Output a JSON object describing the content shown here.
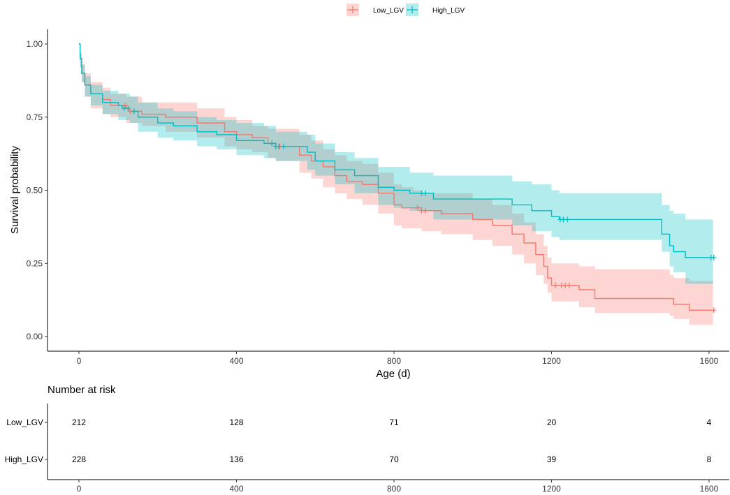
{
  "chart_data": {
    "type": "line",
    "title": "",
    "xlabel": "Age (d)",
    "ylabel": "Survival probability",
    "xlim": [
      -90,
      1640
    ],
    "ylim": [
      -0.05,
      1.05
    ],
    "x_ticks": [
      0,
      400,
      800,
      1200,
      1600
    ],
    "y_ticks": [
      0.0,
      0.25,
      0.5,
      0.75,
      1.0
    ],
    "y_tick_labels": [
      "0.00",
      "0.25",
      "0.50",
      "0.75",
      "1.00"
    ],
    "legend_position": "top",
    "grid": false,
    "series": [
      {
        "name": "Low_LGV",
        "color": "#F8766D",
        "fill_color": "#F8766D",
        "points": [
          [
            0,
            1.0
          ],
          [
            3,
            0.95
          ],
          [
            7,
            0.9
          ],
          [
            15,
            0.86
          ],
          [
            30,
            0.83
          ],
          [
            60,
            0.81
          ],
          [
            80,
            0.79
          ],
          [
            120,
            0.78
          ],
          [
            130,
            0.77
          ],
          [
            160,
            0.76
          ],
          [
            220,
            0.75
          ],
          [
            300,
            0.73
          ],
          [
            370,
            0.7
          ],
          [
            400,
            0.69
          ],
          [
            440,
            0.68
          ],
          [
            480,
            0.66
          ],
          [
            500,
            0.65
          ],
          [
            560,
            0.62
          ],
          [
            590,
            0.6
          ],
          [
            620,
            0.58
          ],
          [
            650,
            0.55
          ],
          [
            680,
            0.53
          ],
          [
            720,
            0.52
          ],
          [
            760,
            0.49
          ],
          [
            800,
            0.45
          ],
          [
            820,
            0.44
          ],
          [
            850,
            0.44
          ],
          [
            870,
            0.43
          ],
          [
            920,
            0.42
          ],
          [
            1000,
            0.4
          ],
          [
            1050,
            0.38
          ],
          [
            1100,
            0.35
          ],
          [
            1130,
            0.32
          ],
          [
            1160,
            0.28
          ],
          [
            1180,
            0.24
          ],
          [
            1190,
            0.2
          ],
          [
            1200,
            0.175
          ],
          [
            1250,
            0.175
          ],
          [
            1270,
            0.16
          ],
          [
            1310,
            0.13
          ],
          [
            1500,
            0.13
          ],
          [
            1510,
            0.11
          ],
          [
            1550,
            0.09
          ],
          [
            1610,
            0.09
          ]
        ],
        "upper": [
          [
            0,
            1.0
          ],
          [
            3,
            0.97
          ],
          [
            7,
            0.93
          ],
          [
            15,
            0.9
          ],
          [
            30,
            0.87
          ],
          [
            60,
            0.85
          ],
          [
            80,
            0.83
          ],
          [
            120,
            0.82
          ],
          [
            160,
            0.8
          ],
          [
            220,
            0.8
          ],
          [
            300,
            0.78
          ],
          [
            370,
            0.75
          ],
          [
            400,
            0.74
          ],
          [
            440,
            0.72
          ],
          [
            480,
            0.71
          ],
          [
            500,
            0.71
          ],
          [
            560,
            0.69
          ],
          [
            590,
            0.67
          ],
          [
            620,
            0.64
          ],
          [
            650,
            0.62
          ],
          [
            680,
            0.6
          ],
          [
            720,
            0.59
          ],
          [
            760,
            0.56
          ],
          [
            800,
            0.52
          ],
          [
            820,
            0.51
          ],
          [
            850,
            0.5
          ],
          [
            870,
            0.49
          ],
          [
            920,
            0.49
          ],
          [
            1000,
            0.47
          ],
          [
            1050,
            0.45
          ],
          [
            1100,
            0.42
          ],
          [
            1130,
            0.39
          ],
          [
            1160,
            0.35
          ],
          [
            1180,
            0.31
          ],
          [
            1190,
            0.27
          ],
          [
            1200,
            0.25
          ],
          [
            1250,
            0.25
          ],
          [
            1270,
            0.24
          ],
          [
            1310,
            0.23
          ],
          [
            1500,
            0.21
          ],
          [
            1510,
            0.2
          ],
          [
            1550,
            0.19
          ],
          [
            1610,
            0.19
          ]
        ],
        "lower": [
          [
            0,
            1.0
          ],
          [
            3,
            0.92
          ],
          [
            7,
            0.87
          ],
          [
            15,
            0.82
          ],
          [
            30,
            0.78
          ],
          [
            60,
            0.76
          ],
          [
            80,
            0.75
          ],
          [
            120,
            0.73
          ],
          [
            160,
            0.72
          ],
          [
            220,
            0.7
          ],
          [
            300,
            0.68
          ],
          [
            370,
            0.65
          ],
          [
            400,
            0.64
          ],
          [
            440,
            0.63
          ],
          [
            480,
            0.61
          ],
          [
            500,
            0.6
          ],
          [
            560,
            0.56
          ],
          [
            590,
            0.54
          ],
          [
            620,
            0.51
          ],
          [
            650,
            0.49
          ],
          [
            680,
            0.47
          ],
          [
            720,
            0.45
          ],
          [
            760,
            0.42
          ],
          [
            800,
            0.38
          ],
          [
            820,
            0.37
          ],
          [
            850,
            0.37
          ],
          [
            870,
            0.36
          ],
          [
            920,
            0.35
          ],
          [
            1000,
            0.33
          ],
          [
            1050,
            0.31
          ],
          [
            1100,
            0.28
          ],
          [
            1130,
            0.25
          ],
          [
            1160,
            0.21
          ],
          [
            1180,
            0.18
          ],
          [
            1190,
            0.15
          ],
          [
            1200,
            0.12
          ],
          [
            1250,
            0.12
          ],
          [
            1270,
            0.1
          ],
          [
            1310,
            0.08
          ],
          [
            1500,
            0.07
          ],
          [
            1510,
            0.06
          ],
          [
            1550,
            0.04
          ],
          [
            1610,
            0.04
          ]
        ],
        "censor_x": [
          118,
          125,
          130,
          140,
          490,
          500,
          510,
          860,
          870,
          880,
          1210,
          1225,
          1235,
          1245,
          1612
        ]
      },
      {
        "name": "High_LGV",
        "color": "#00BFC4",
        "fill_color": "#00BFC4",
        "points": [
          [
            0,
            1.0
          ],
          [
            3,
            0.95
          ],
          [
            7,
            0.9
          ],
          [
            15,
            0.86
          ],
          [
            30,
            0.83
          ],
          [
            60,
            0.8
          ],
          [
            100,
            0.79
          ],
          [
            110,
            0.78
          ],
          [
            130,
            0.77
          ],
          [
            150,
            0.75
          ],
          [
            200,
            0.73
          ],
          [
            240,
            0.72
          ],
          [
            300,
            0.7
          ],
          [
            350,
            0.69
          ],
          [
            400,
            0.67
          ],
          [
            470,
            0.66
          ],
          [
            500,
            0.65
          ],
          [
            540,
            0.65
          ],
          [
            580,
            0.63
          ],
          [
            600,
            0.6
          ],
          [
            650,
            0.57
          ],
          [
            700,
            0.55
          ],
          [
            760,
            0.51
          ],
          [
            800,
            0.5
          ],
          [
            840,
            0.49
          ],
          [
            880,
            0.49
          ],
          [
            900,
            0.47
          ],
          [
            1050,
            0.47
          ],
          [
            1100,
            0.45
          ],
          [
            1150,
            0.43
          ],
          [
            1200,
            0.41
          ],
          [
            1220,
            0.4
          ],
          [
            1470,
            0.4
          ],
          [
            1480,
            0.35
          ],
          [
            1500,
            0.31
          ],
          [
            1510,
            0.29
          ],
          [
            1540,
            0.27
          ],
          [
            1610,
            0.27
          ]
        ],
        "upper": [
          [
            0,
            1.0
          ],
          [
            3,
            0.97
          ],
          [
            7,
            0.93
          ],
          [
            15,
            0.89
          ],
          [
            30,
            0.86
          ],
          [
            60,
            0.84
          ],
          [
            100,
            0.83
          ],
          [
            130,
            0.82
          ],
          [
            150,
            0.8
          ],
          [
            200,
            0.78
          ],
          [
            240,
            0.77
          ],
          [
            300,
            0.75
          ],
          [
            350,
            0.74
          ],
          [
            400,
            0.73
          ],
          [
            470,
            0.72
          ],
          [
            500,
            0.7
          ],
          [
            540,
            0.7
          ],
          [
            580,
            0.69
          ],
          [
            600,
            0.66
          ],
          [
            650,
            0.63
          ],
          [
            700,
            0.61
          ],
          [
            760,
            0.58
          ],
          [
            800,
            0.58
          ],
          [
            840,
            0.56
          ],
          [
            880,
            0.56
          ],
          [
            900,
            0.55
          ],
          [
            1050,
            0.55
          ],
          [
            1100,
            0.53
          ],
          [
            1150,
            0.52
          ],
          [
            1200,
            0.5
          ],
          [
            1220,
            0.49
          ],
          [
            1470,
            0.49
          ],
          [
            1480,
            0.45
          ],
          [
            1500,
            0.43
          ],
          [
            1510,
            0.42
          ],
          [
            1540,
            0.4
          ],
          [
            1610,
            0.4
          ]
        ],
        "lower": [
          [
            0,
            1.0
          ],
          [
            3,
            0.92
          ],
          [
            7,
            0.87
          ],
          [
            15,
            0.82
          ],
          [
            30,
            0.79
          ],
          [
            60,
            0.76
          ],
          [
            100,
            0.74
          ],
          [
            130,
            0.73
          ],
          [
            150,
            0.7
          ],
          [
            200,
            0.68
          ],
          [
            240,
            0.67
          ],
          [
            300,
            0.65
          ],
          [
            350,
            0.64
          ],
          [
            400,
            0.62
          ],
          [
            470,
            0.61
          ],
          [
            500,
            0.6
          ],
          [
            540,
            0.6
          ],
          [
            580,
            0.57
          ],
          [
            600,
            0.55
          ],
          [
            650,
            0.52
          ],
          [
            700,
            0.49
          ],
          [
            760,
            0.45
          ],
          [
            800,
            0.44
          ],
          [
            840,
            0.43
          ],
          [
            880,
            0.43
          ],
          [
            900,
            0.4
          ],
          [
            1050,
            0.4
          ],
          [
            1100,
            0.38
          ],
          [
            1150,
            0.36
          ],
          [
            1200,
            0.34
          ],
          [
            1220,
            0.33
          ],
          [
            1470,
            0.33
          ],
          [
            1480,
            0.29
          ],
          [
            1500,
            0.24
          ],
          [
            1510,
            0.22
          ],
          [
            1540,
            0.18
          ],
          [
            1610,
            0.18
          ]
        ],
        "censor_x": [
          115,
          125,
          140,
          490,
          500,
          508,
          520,
          870,
          880,
          1222,
          1230,
          1240,
          1605,
          1612
        ]
      }
    ],
    "risk_table": {
      "title": "Number at risk",
      "times": [
        0,
        400,
        800,
        1200,
        1600
      ],
      "rows": [
        {
          "label": "Low_LGV",
          "color": "#F8766D",
          "values": [
            212,
            128,
            71,
            20,
            4
          ]
        },
        {
          "label": "High_LGV",
          "color": "#00BFC4",
          "values": [
            228,
            136,
            70,
            39,
            8
          ]
        }
      ]
    }
  }
}
